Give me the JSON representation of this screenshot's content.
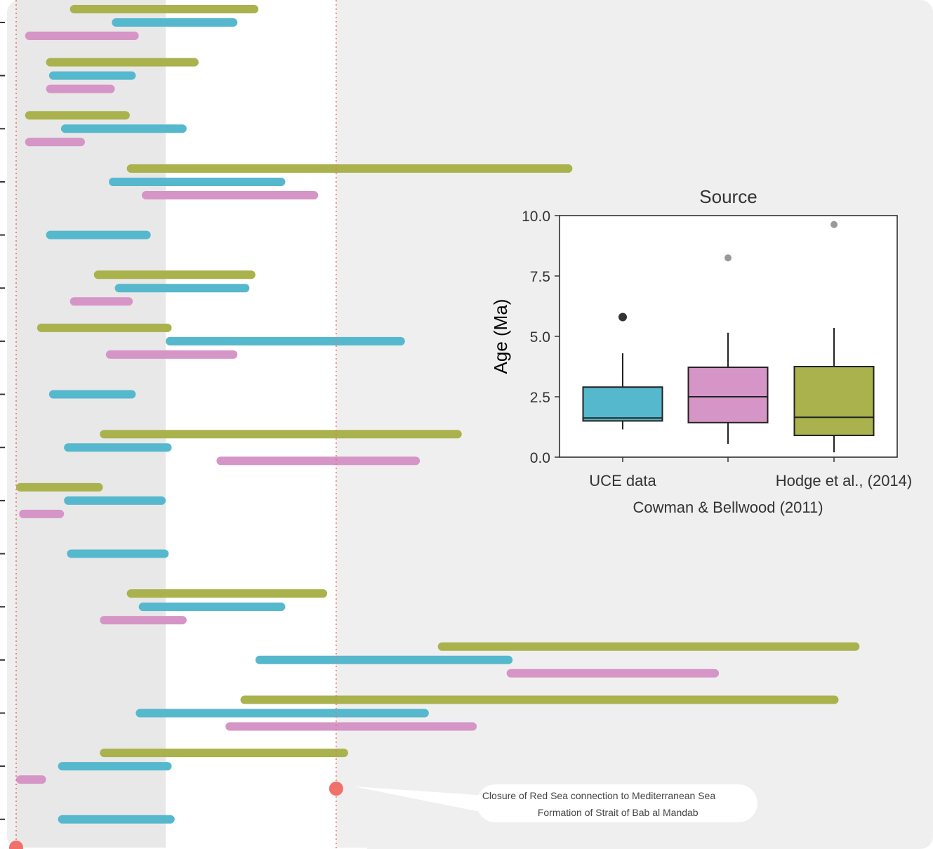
{
  "chart_data": [
    {
      "type": "range-bar",
      "x_range_ma": [
        0,
        28
      ],
      "shaded_band_ma": [
        0,
        5
      ],
      "events": [
        {
          "age_ma": 0,
          "label_lines": []
        },
        {
          "age_ma": 10.7,
          "label_lines": [
            "Closure of Red Sea connection to Mediterranean Sea",
            "Formation of Strait of Bab al Mandab"
          ]
        }
      ],
      "rows": [
        {
          "ranges": [
            [
              1.8,
              8.1
            ],
            [
              3.2,
              7.4
            ],
            [
              0.3,
              4.1
            ]
          ]
        },
        {
          "ranges": [
            [
              1.0,
              6.1
            ],
            [
              1.1,
              4.0
            ],
            [
              1.0,
              3.3
            ]
          ]
        },
        {
          "ranges": [
            [
              0.3,
              3.8
            ],
            [
              1.5,
              5.7
            ],
            [
              0.3,
              2.3
            ]
          ]
        },
        {
          "ranges": [
            [
              3.7,
              18.6
            ],
            [
              3.1,
              9.0
            ],
            [
              4.2,
              10.1
            ]
          ]
        },
        {
          "ranges": [
            null,
            [
              1.0,
              4.5
            ],
            null
          ]
        },
        {
          "ranges": [
            [
              2.6,
              8.0
            ],
            [
              3.3,
              7.8
            ],
            [
              1.8,
              3.9
            ]
          ]
        },
        {
          "ranges": [
            [
              0.7,
              5.2
            ],
            [
              5.0,
              13.0
            ],
            [
              3.0,
              7.4
            ]
          ]
        },
        {
          "ranges": [
            null,
            [
              1.1,
              4.0
            ],
            null
          ]
        },
        {
          "ranges": [
            [
              2.8,
              14.9
            ],
            [
              1.6,
              5.2
            ],
            [
              6.7,
              13.5
            ]
          ]
        },
        {
          "ranges": [
            [
              0,
              2.9
            ],
            [
              1.6,
              5.0
            ],
            [
              0.1,
              1.6
            ]
          ]
        },
        {
          "ranges": [
            null,
            [
              1.7,
              5.1
            ],
            null
          ]
        },
        {
          "ranges": [
            [
              3.7,
              10.4
            ],
            [
              4.1,
              9.0
            ],
            [
              2.8,
              5.7
            ]
          ]
        },
        {
          "ranges": [
            [
              14.1,
              28.2
            ],
            [
              8.0,
              16.6
            ],
            [
              16.4,
              23.5
            ]
          ]
        },
        {
          "ranges": [
            [
              7.5,
              27.5
            ],
            [
              4.0,
              13.8
            ],
            [
              7.0,
              15.4
            ]
          ]
        },
        {
          "ranges": [
            [
              2.8,
              11.1
            ],
            [
              1.4,
              5.2
            ],
            [
              0,
              1.0
            ]
          ]
        },
        {
          "ranges": [
            null,
            [
              1.4,
              5.3
            ],
            null
          ]
        }
      ],
      "series_colors": [
        "#a9b24c",
        "#56b8cd",
        "#d595c6"
      ]
    },
    {
      "type": "boxplot",
      "title": "Source",
      "ylabel": "Age (Ma)",
      "ylim": [
        0,
        10
      ],
      "yticks": [
        "0.0",
        "2.5",
        "5.0",
        "7.5",
        "10.0"
      ],
      "categories": [
        "UCE data",
        "Cowman & Bellwood (2011)",
        "Hodge et al., (2014)"
      ],
      "boxes": [
        {
          "color": "#56b8cd",
          "min": 1.15,
          "q1": 1.5,
          "median": 1.62,
          "q3": 2.9,
          "max": 4.3,
          "outliers": [
            5.8
          ],
          "outlier_color": "#333333"
        },
        {
          "color": "#d595c6",
          "min": 0.55,
          "q1": 1.43,
          "median": 2.5,
          "q3": 3.72,
          "max": 5.15,
          "outliers": [
            8.25
          ],
          "outlier_color": "#999999"
        },
        {
          "color": "#a9b24c",
          "min": 0.2,
          "q1": 0.9,
          "median": 1.65,
          "q3": 3.75,
          "max": 5.35,
          "outliers": [
            9.63
          ],
          "outlier_color": "#999999"
        }
      ]
    }
  ]
}
